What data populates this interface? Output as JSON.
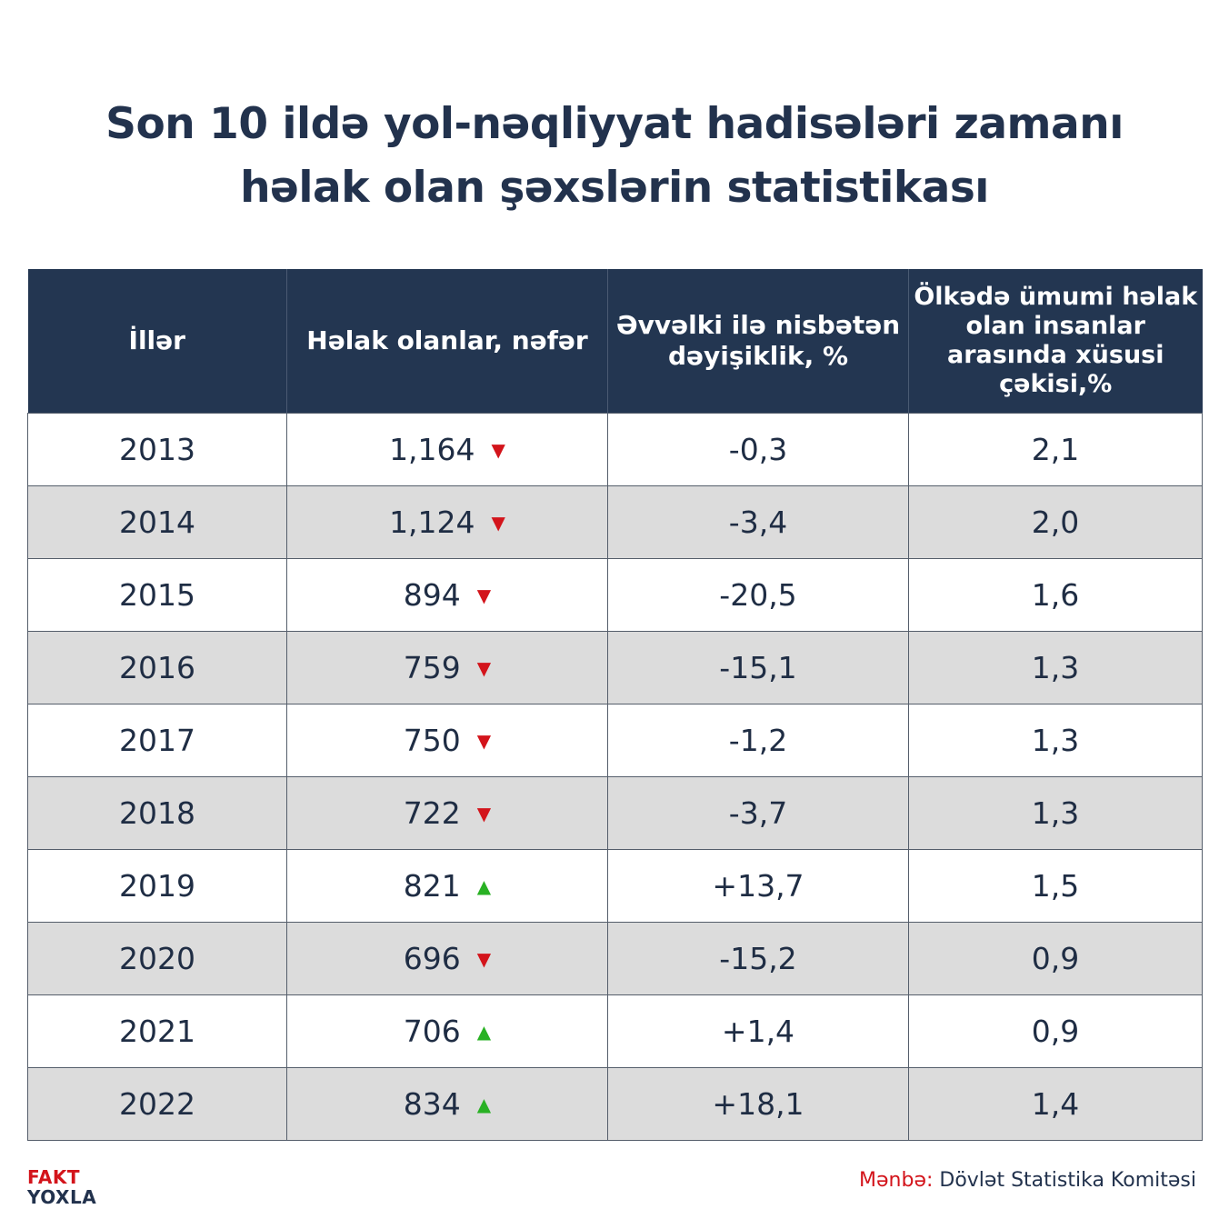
{
  "title": {
    "line1": "Son 10 ildə yol-nəqliyyat hadisələri zamanı",
    "line2": "həlak olan şəxslərin statistikası"
  },
  "table": {
    "headers": [
      "İllər",
      "Həlak olanlar, nəfər",
      "Əvvəlki ilə nisbətən dəyişiklik, %",
      "Ölkədə ümumi həlak olan insanlar arasında xüsusi çəkisi,%"
    ],
    "rows": [
      {
        "year": "2013",
        "deaths": "1,164",
        "trend": "down",
        "change": "-0,3",
        "share": "2,1"
      },
      {
        "year": "2014",
        "deaths": "1,124",
        "trend": "down",
        "change": "-3,4",
        "share": "2,0"
      },
      {
        "year": "2015",
        "deaths": "894",
        "trend": "down",
        "change": "-20,5",
        "share": "1,6"
      },
      {
        "year": "2016",
        "deaths": "759",
        "trend": "down",
        "change": "-15,1",
        "share": "1,3"
      },
      {
        "year": "2017",
        "deaths": "750",
        "trend": "down",
        "change": "-1,2",
        "share": "1,3"
      },
      {
        "year": "2018",
        "deaths": "722",
        "trend": "down",
        "change": "-3,7",
        "share": "1,3"
      },
      {
        "year": "2019",
        "deaths": "821",
        "trend": "up",
        "change": "+13,7",
        "share": "1,5"
      },
      {
        "year": "2020",
        "deaths": "696",
        "trend": "down",
        "change": "-15,2",
        "share": "0,9"
      },
      {
        "year": "2021",
        "deaths": "706",
        "trend": "up",
        "change": "+1,4",
        "share": "0,9"
      },
      {
        "year": "2022",
        "deaths": "834",
        "trend": "up",
        "change": "+18,1",
        "share": "1,4"
      }
    ]
  },
  "trend_icons": {
    "down": {
      "glyph": "▼",
      "color": "#d3141b"
    },
    "up": {
      "glyph": "▲",
      "color": "#29b124"
    }
  },
  "logo": {
    "line1": "FAKT",
    "line2": "YOXLA"
  },
  "source": {
    "label": "Mənbə:",
    "value": "Dövlət Statistika Komitəsi"
  },
  "colors": {
    "header_bg": "#233651",
    "title_text": "#22324d",
    "stripe": "#dcdcdc",
    "accent_red": "#d3141b",
    "accent_green": "#29b124"
  }
}
